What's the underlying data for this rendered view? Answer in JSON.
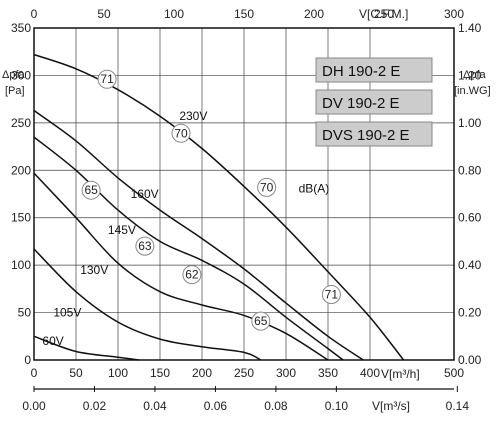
{
  "chart_data": {
    "type": "line",
    "axes": {
      "left": {
        "label": "Δpfa",
        "unit": "[Pa]",
        "range": [
          0,
          350
        ],
        "ticks": [
          0,
          50,
          100,
          150,
          200,
          250,
          300,
          350
        ]
      },
      "right": {
        "label": "Δpfa",
        "unit": "[in.WG]",
        "range": [
          0,
          1.4
        ],
        "ticks": [
          "0.00",
          "0.20",
          "0.40",
          "0.60",
          "0.80",
          "1.00",
          "1.20",
          "1.40"
        ]
      },
      "bottom_primary": {
        "label": "V[m³/h]",
        "range": [
          0,
          500
        ],
        "ticks": [
          0,
          50,
          100,
          150,
          200,
          250,
          300,
          350,
          400,
          500
        ]
      },
      "bottom_secondary": {
        "label": "V[m³/s]",
        "range": [
          0,
          0.1389
        ],
        "ticks": [
          "0.00",
          "0.02",
          "0.04",
          "0.06",
          "0.08",
          "0.10",
          "0.14"
        ]
      },
      "top": {
        "label": "V[C.F.M.]",
        "range": [
          0,
          300
        ],
        "ticks": [
          0,
          50,
          100,
          150,
          200,
          250,
          300
        ]
      },
      "grid": true
    },
    "models": [
      "DH 190-2 E",
      "DV 190-2 E",
      "DVS 190-2 E"
    ],
    "series": [
      {
        "name": "230V",
        "x": [
          0,
          50,
          100,
          150,
          200,
          250,
          300,
          350,
          400,
          440
        ],
        "y": [
          322,
          307,
          285,
          257,
          223,
          183,
          140,
          93,
          45,
          0
        ]
      },
      {
        "name": "160V",
        "x": [
          0,
          50,
          100,
          150,
          200,
          250,
          300,
          350,
          392
        ],
        "y": [
          263,
          231,
          192,
          158,
          128,
          96,
          60,
          25,
          0
        ]
      },
      {
        "name": "145V",
        "x": [
          0,
          50,
          100,
          150,
          200,
          250,
          300,
          350,
          368
        ],
        "y": [
          235,
          200,
          158,
          125,
          105,
          80,
          45,
          12,
          0
        ]
      },
      {
        "name": "130V",
        "x": [
          0,
          50,
          100,
          150,
          200,
          250,
          300,
          350
        ],
        "y": [
          197,
          150,
          102,
          72,
          58,
          47,
          28,
          0
        ]
      },
      {
        "name": "105V",
        "x": [
          0,
          50,
          100,
          150,
          200,
          250,
          270
        ],
        "y": [
          117,
          72,
          40,
          22,
          14,
          8,
          0
        ]
      },
      {
        "name": "60V",
        "x": [
          0,
          50,
          100,
          125
        ],
        "y": [
          25,
          9,
          3,
          0
        ]
      }
    ],
    "curve_labels": [
      {
        "text": "230V",
        "x": 173,
        "y": 257
      },
      {
        "text": "160V",
        "x": 115,
        "y": 175
      },
      {
        "text": "145V",
        "x": 88,
        "y": 137
      },
      {
        "text": "130V",
        "x": 55,
        "y": 95
      },
      {
        "text": "105V",
        "x": 23,
        "y": 50
      },
      {
        "text": "60V",
        "x": 10,
        "y": 20
      },
      {
        "text": "dB(A)",
        "x": 315,
        "y": 181
      }
    ],
    "noise_levels": [
      {
        "text": "71",
        "x": 87,
        "y": 296
      },
      {
        "text": "70",
        "x": 175,
        "y": 239
      },
      {
        "text": "65",
        "x": 68,
        "y": 179
      },
      {
        "text": "63",
        "x": 132,
        "y": 120
      },
      {
        "text": "62",
        "x": 188,
        "y": 90
      },
      {
        "text": "70",
        "x": 277,
        "y": 182
      },
      {
        "text": "65",
        "x": 270,
        "y": 41
      },
      {
        "text": "71",
        "x": 354,
        "y": 69
      }
    ],
    "colors": {
      "curve": "#111111",
      "grid": "#444444",
      "badge_fill": "#cccccc",
      "badge_stroke": "#888888",
      "marker_fill": "#ffffff",
      "marker_stroke": "#888888"
    }
  }
}
